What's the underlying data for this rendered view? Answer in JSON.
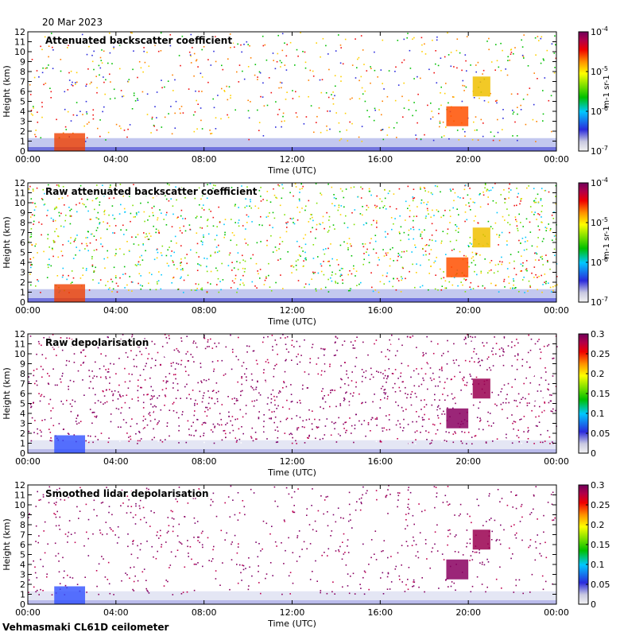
{
  "date": "20 Mar 2023",
  "footer": "Vehmasmaki CL61D ceilometer",
  "chart_data": [
    {
      "type": "heatmap",
      "title": "Attenuated backscatter coefficient",
      "xlabel": "Time (UTC)",
      "ylabel": "Height (km)",
      "xticks": [
        "00:00",
        "04:00",
        "08:00",
        "12:00",
        "16:00",
        "20:00",
        "00:00"
      ],
      "yticks": [
        "0",
        "1",
        "2",
        "3",
        "4",
        "5",
        "6",
        "7",
        "8",
        "9",
        "10",
        "11",
        "12"
      ],
      "ylim": [
        0,
        12
      ],
      "xlim_hours": [
        0,
        24
      ],
      "colorbar": {
        "scale": "log",
        "ticks": [
          "10^-7",
          "10^-6",
          "10^-5",
          "10^-4"
        ],
        "unit": "m^-1 sr^-1"
      }
    },
    {
      "type": "heatmap",
      "title": "Raw attenuated backscatter coefficient",
      "xlabel": "Time (UTC)",
      "ylabel": "Height (km)",
      "xticks": [
        "00:00",
        "04:00",
        "08:00",
        "12:00",
        "16:00",
        "20:00",
        "00:00"
      ],
      "yticks": [
        "0",
        "1",
        "2",
        "3",
        "4",
        "5",
        "6",
        "7",
        "8",
        "9",
        "10",
        "11",
        "12"
      ],
      "ylim": [
        0,
        12
      ],
      "xlim_hours": [
        0,
        24
      ],
      "colorbar": {
        "scale": "log",
        "ticks": [
          "10^-7",
          "10^-6",
          "10^-5",
          "10^-4"
        ],
        "unit": "m^-1 sr^-1"
      }
    },
    {
      "type": "heatmap",
      "title": "Raw depolarisation",
      "xlabel": "Time (UTC)",
      "ylabel": "Height (km)",
      "xticks": [
        "00:00",
        "04:00",
        "08:00",
        "12:00",
        "16:00",
        "20:00",
        "00:00"
      ],
      "yticks": [
        "0",
        "1",
        "2",
        "3",
        "4",
        "5",
        "6",
        "7",
        "8",
        "9",
        "10",
        "11",
        "12"
      ],
      "ylim": [
        0,
        12
      ],
      "xlim_hours": [
        0,
        24
      ],
      "colorbar": {
        "scale": "linear",
        "ticks": [
          "0",
          "0.05",
          "0.1",
          "0.15",
          "0.2",
          "0.25",
          "0.3"
        ],
        "unit": ""
      }
    },
    {
      "type": "heatmap",
      "title": "Smoothed lidar depolarisation",
      "xlabel": "Time (UTC)",
      "ylabel": "Height (km)",
      "xticks": [
        "00:00",
        "04:00",
        "08:00",
        "12:00",
        "16:00",
        "20:00",
        "00:00"
      ],
      "yticks": [
        "0",
        "1",
        "2",
        "3",
        "4",
        "5",
        "6",
        "7",
        "8",
        "9",
        "10",
        "11",
        "12"
      ],
      "ylim": [
        0,
        12
      ],
      "xlim_hours": [
        0,
        24
      ],
      "colorbar": {
        "scale": "linear",
        "ticks": [
          "0",
          "0.05",
          "0.1",
          "0.15",
          "0.2",
          "0.25",
          "0.3"
        ],
        "unit": ""
      }
    }
  ]
}
